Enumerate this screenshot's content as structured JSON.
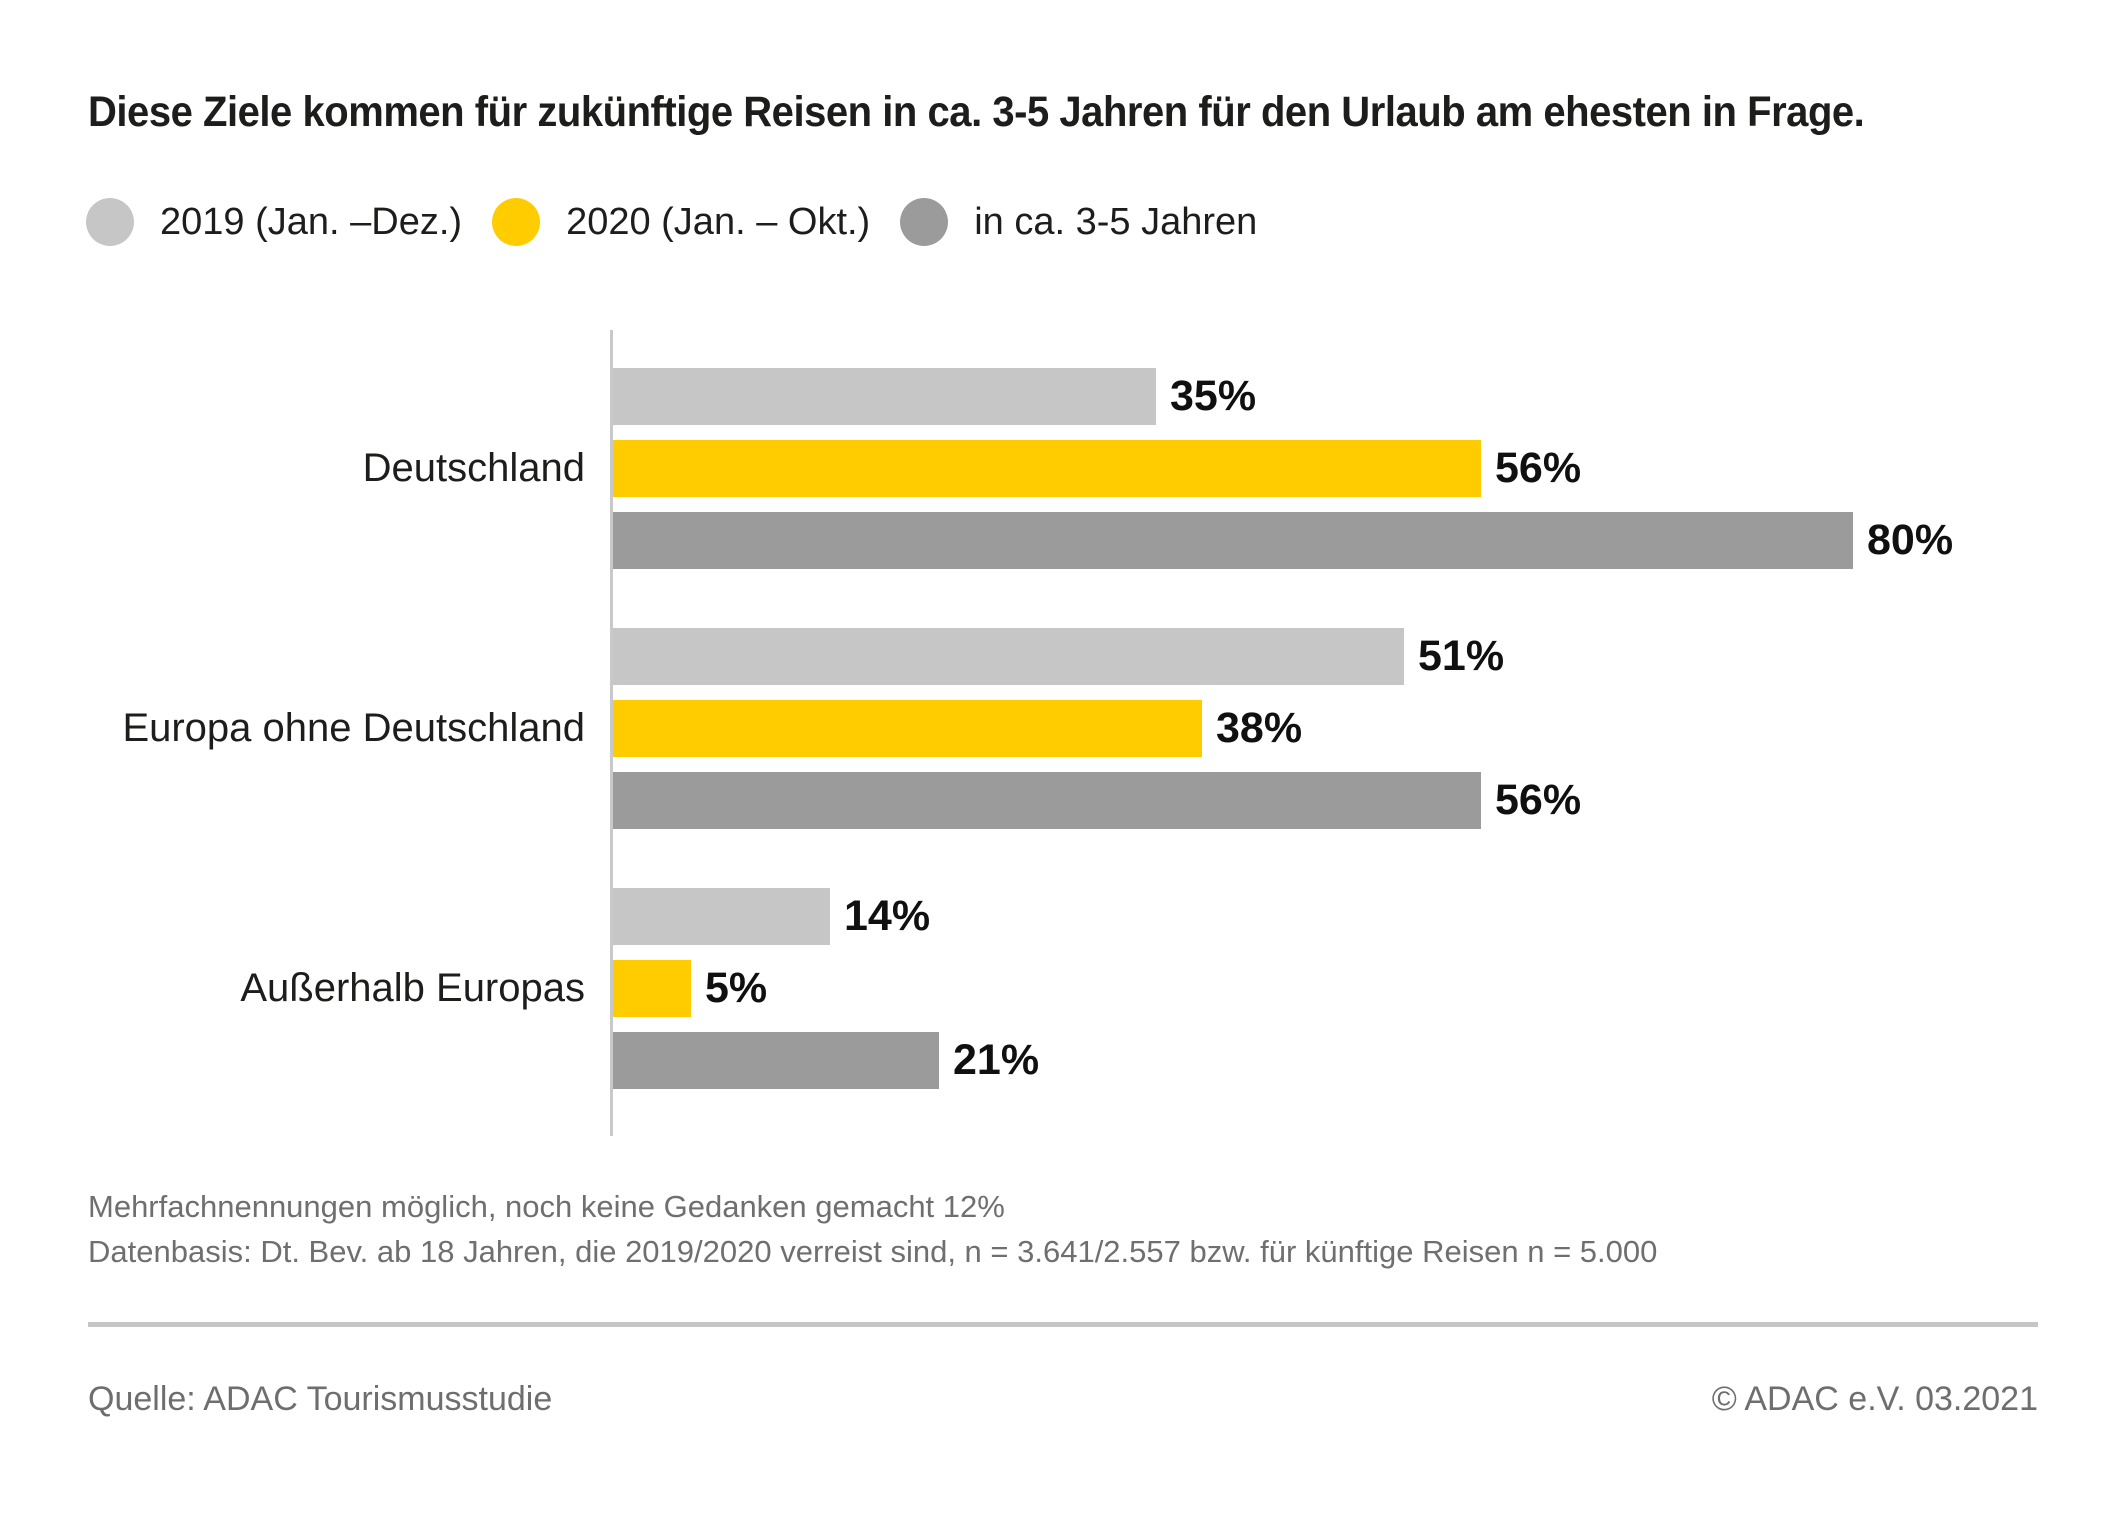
{
  "title": "Diese Ziele kommen für zukünftige Reisen in ca. 3-5 Jahren für den Urlaub am ehesten in Frage.",
  "colors": {
    "series_2019": "#c6c6c6",
    "series_2020": "#ffcc00",
    "series_future": "#9b9b9b",
    "text_dark": "#1d1d1b",
    "text_gray": "#706f6f",
    "axis_line": "#c9c9c9",
    "divider": "#c6c6c6"
  },
  "chart_data": {
    "type": "bar",
    "orientation": "horizontal",
    "title": "Diese Ziele kommen für zukünftige Reisen in ca. 3-5 Jahren für den Urlaub am ehesten in Frage.",
    "categories": [
      "Deutschland",
      "Europa ohne Deutschland",
      "Außerhalb Europas"
    ],
    "series": [
      {
        "name": "2019 (Jan. –Dez.)",
        "color": "#c6c6c6",
        "values": [
          35,
          51,
          14
        ]
      },
      {
        "name": "2020 (Jan. – Okt.)",
        "color": "#ffcc00",
        "values": [
          56,
          38,
          5
        ]
      },
      {
        "name": "in ca. 3-5 Jahren",
        "color": "#9b9b9b",
        "values": [
          80,
          56,
          21
        ]
      }
    ],
    "unit": "%",
    "value_label_format": "{value}%",
    "xlim": [
      0,
      92
    ],
    "grid": false,
    "legend_position": "top-left"
  },
  "footnotes": [
    "Mehrfachnennungen möglich, noch keine Gedanken gemacht 12%",
    "Datenbasis: Dt. Bev. ab 18 Jahren, die 2019/2020 verreist sind, n = 3.641/2.557 bzw. für künftige Reisen n = 5.000"
  ],
  "footer": {
    "source": "Quelle: ADAC Tourismusstudie",
    "copyright": "© ADAC e.V. 03.2021"
  }
}
